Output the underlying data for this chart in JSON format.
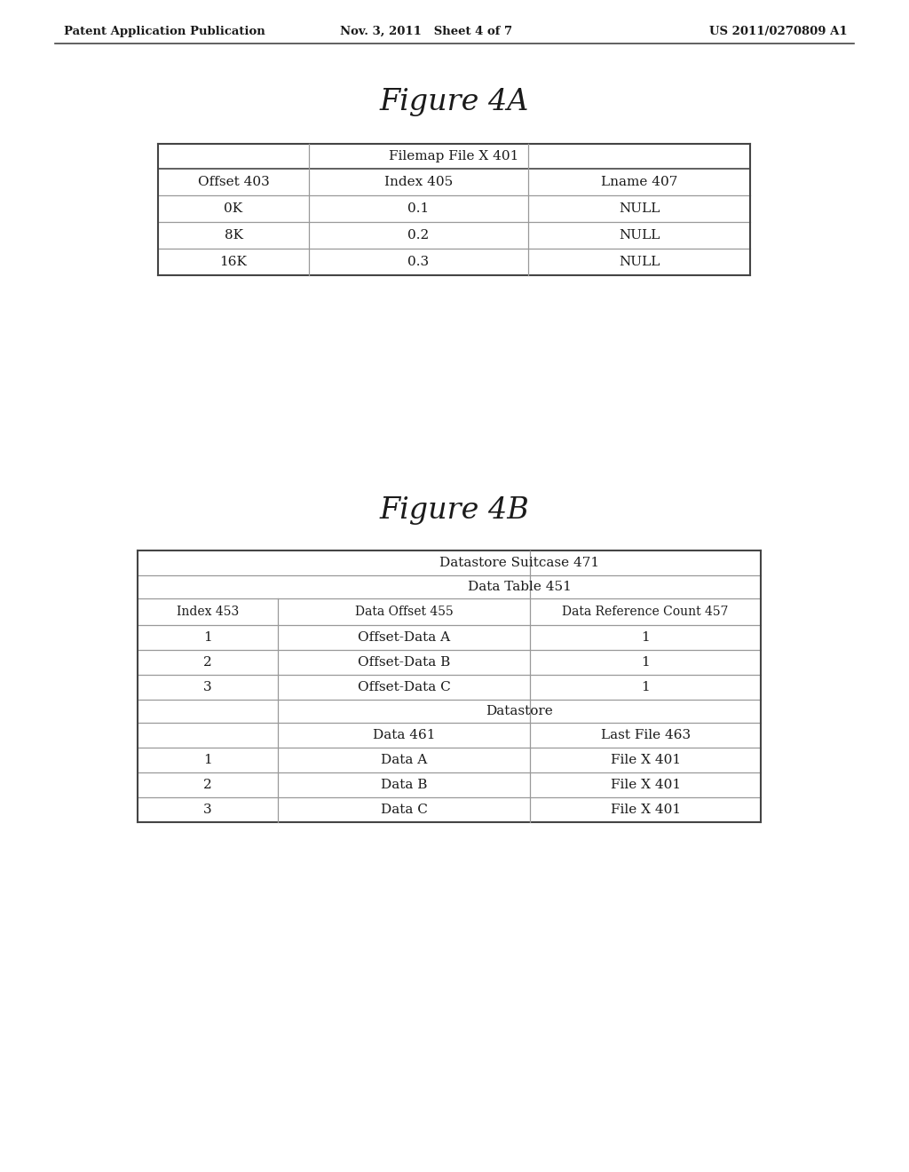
{
  "header_text": {
    "left": "Patent Application Publication",
    "center": "Nov. 3, 2011   Sheet 4 of 7",
    "right": "US 2011/0270809 A1"
  },
  "fig4a_title": "Figure 4A",
  "fig4b_title": "Figure 4B",
  "table4a": {
    "title": "Filemap File X 401",
    "col_headers": [
      "Offset 403",
      "Index 405",
      "Lname 407"
    ],
    "rows": [
      [
        "0K",
        "0.1",
        "NULL"
      ],
      [
        "8K",
        "0.2",
        "NULL"
      ],
      [
        "16K",
        "0.3",
        "NULL"
      ]
    ]
  },
  "table4b": {
    "outer_title": "Datastore Suitcase 471",
    "data_table_title": "Data Table 451",
    "col_headers": [
      "Index 453",
      "Data Offset 455",
      "Data Reference Count 457"
    ],
    "data_rows": [
      [
        "1",
        "Offset-Data A",
        "1"
      ],
      [
        "2",
        "Offset-Data B",
        "1"
      ],
      [
        "3",
        "Offset-Data C",
        "1"
      ]
    ],
    "datastore_title": "Datastore",
    "ds_col_headers": [
      "",
      "Data 461",
      "Last File 463"
    ],
    "ds_rows": [
      [
        "1",
        "Data A",
        "File X 401"
      ],
      [
        "2",
        "Data B",
        "File X 401"
      ],
      [
        "3",
        "Data C",
        "File X 401"
      ]
    ]
  },
  "bg_color": "#ffffff",
  "text_color": "#1a1a1a",
  "line_color": "#999999",
  "thick_line_color": "#444444",
  "font_family": "serif"
}
